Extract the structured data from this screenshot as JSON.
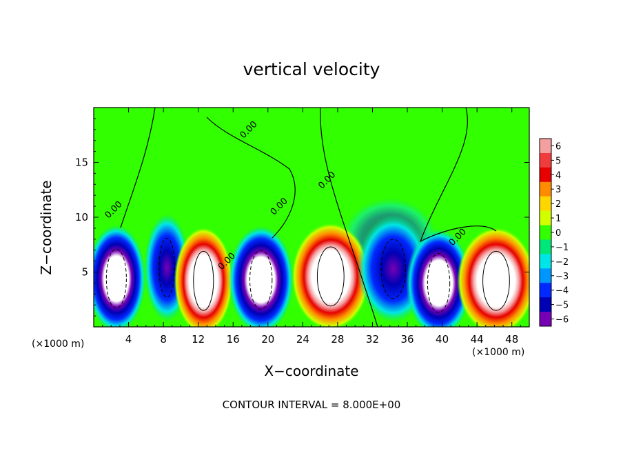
{
  "chart_data": {
    "type": "heatmap",
    "title": "vertical velocity",
    "xlabel": "X−coordinate",
    "ylabel": "Z−coordinate",
    "x_unit": "(×1000 m)",
    "xlim": [
      0,
      50
    ],
    "ylim": [
      0,
      20
    ],
    "x_ticks": [
      4,
      8,
      12,
      16,
      20,
      24,
      28,
      32,
      36,
      40,
      44,
      48
    ],
    "y_ticks": [
      5,
      10,
      15
    ],
    "colorbar": {
      "ticks": [
        6,
        5,
        4,
        3,
        2,
        1,
        0,
        -1,
        -2,
        -3,
        -4,
        -5,
        -6
      ],
      "tick_labels": [
        "6",
        "5",
        "4",
        "3",
        "2",
        "1",
        "0",
        "−1",
        "−2",
        "−3",
        "−4",
        "−5",
        "−6"
      ],
      "colors": [
        "#f5a0a0",
        "#f03c3c",
        "#e60000",
        "#ff8c00",
        "#ffd700",
        "#d2ff00",
        "#32ff00",
        "#00e678",
        "#00e6e6",
        "#0096ff",
        "#0028ff",
        "#0000b4",
        "#7800b4"
      ]
    },
    "contour_labels": [
      {
        "text": "0.00",
        "x": 2.5,
        "z": 10.5
      },
      {
        "text": "0.00",
        "x": 18.0,
        "z": 17.8
      },
      {
        "text": "0.00",
        "x": 15.5,
        "z": 5.8
      },
      {
        "text": "0.00",
        "x": 21.5,
        "z": 10.8
      },
      {
        "text": "0.00",
        "x": 27.0,
        "z": 13.2
      },
      {
        "text": "0.00",
        "x": 42.0,
        "z": 8.0
      }
    ],
    "cells": [
      {
        "x": 2.6,
        "z": 4.4,
        "w": 0.45,
        "strength": -1
      },
      {
        "x": 8.4,
        "z": 5.4,
        "w": 0.35,
        "strength": -0.9
      },
      {
        "x": 12.6,
        "z": 4.2,
        "w": 0.45,
        "strength": 1
      },
      {
        "x": 19.2,
        "z": 4.3,
        "w": 0.5,
        "strength": -1
      },
      {
        "x": 27.2,
        "z": 4.6,
        "w": 0.6,
        "strength": 1
      },
      {
        "x": 34.4,
        "z": 5.3,
        "w": 0.55,
        "strength": -0.85
      },
      {
        "x": 39.6,
        "z": 4.0,
        "w": 0.5,
        "strength": -1
      },
      {
        "x": 46.2,
        "z": 4.2,
        "w": 0.6,
        "strength": 1
      }
    ],
    "contour_interval_text": "CONTOUR INTERVAL = 8.000E+00"
  }
}
